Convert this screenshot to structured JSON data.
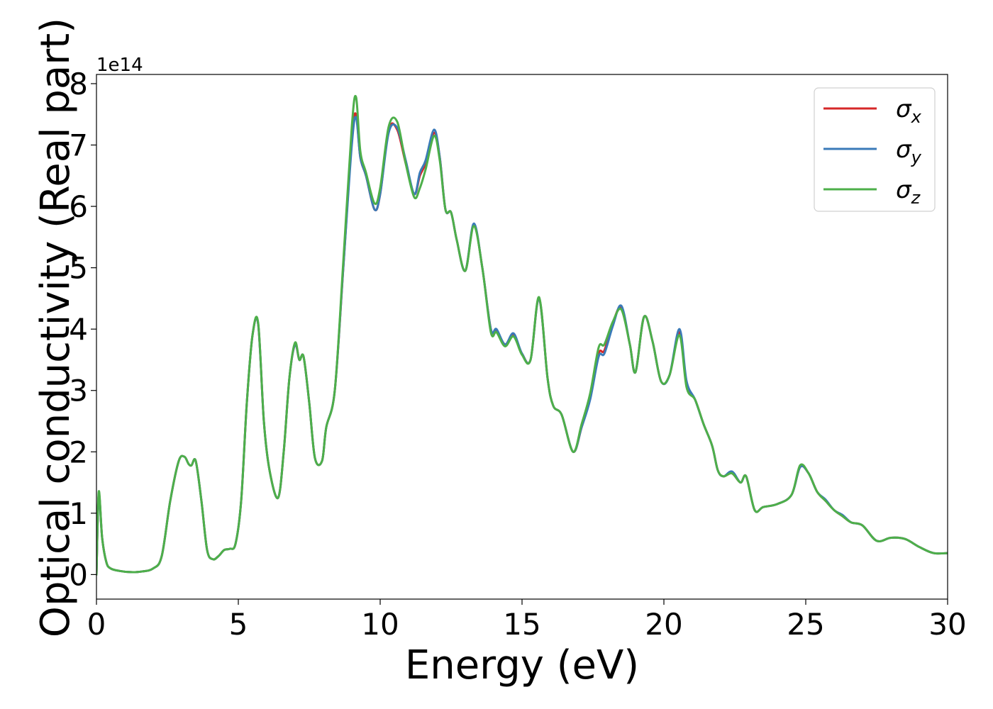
{
  "chart_data": {
    "type": "line",
    "xlabel": "Energy (eV)",
    "ylabel": "Optical conductivity (Real part)",
    "y_offset_label": "1e14",
    "xlim": [
      0,
      30
    ],
    "ylim": [
      -0.4,
      8.15
    ],
    "x_ticks": [
      0,
      5,
      10,
      15,
      20,
      25,
      30
    ],
    "y_ticks": [
      0,
      1,
      2,
      3,
      4,
      5,
      6,
      7,
      8
    ],
    "grid": false,
    "legend_position": "top-right",
    "series": [
      {
        "name": "σx",
        "symbol": "σ",
        "subscript": "x",
        "color": "#d62728",
        "x": [
          0,
          0.08,
          0.2,
          0.35,
          0.5,
          0.8,
          1.2,
          1.6,
          2.0,
          2.3,
          2.6,
          2.9,
          3.1,
          3.25,
          3.35,
          3.5,
          3.7,
          3.9,
          4.1,
          4.3,
          4.5,
          4.7,
          4.9,
          5.1,
          5.3,
          5.5,
          5.7,
          5.9,
          6.1,
          6.4,
          6.6,
          6.8,
          7.0,
          7.15,
          7.3,
          7.5,
          7.7,
          7.95,
          8.1,
          8.4,
          8.7,
          9.0,
          9.15,
          9.3,
          9.5,
          9.8,
          10.0,
          10.3,
          10.6,
          10.9,
          11.2,
          11.4,
          11.6,
          11.9,
          12.1,
          12.3,
          12.5,
          12.7,
          13.0,
          13.3,
          13.6,
          13.9,
          14.1,
          14.4,
          14.7,
          15.0,
          15.3,
          15.6,
          15.9,
          16.1,
          16.4,
          16.8,
          17.1,
          17.4,
          17.7,
          17.9,
          18.2,
          18.5,
          18.8,
          19.0,
          19.3,
          19.6,
          19.9,
          20.2,
          20.55,
          20.8,
          21.1,
          21.4,
          21.7,
          21.9,
          22.1,
          22.4,
          22.7,
          22.9,
          23.2,
          23.5,
          24.0,
          24.5,
          24.8,
          25.1,
          25.4,
          25.7,
          26.0,
          26.3,
          26.6,
          27.0,
          27.5,
          28.0,
          28.5,
          29.0,
          29.5,
          30.0
        ],
        "y": [
          0,
          1.3,
          0.6,
          0.2,
          0.1,
          0.06,
          0.04,
          0.05,
          0.1,
          0.3,
          1.2,
          1.85,
          1.92,
          1.8,
          1.78,
          1.85,
          1.2,
          0.4,
          0.25,
          0.3,
          0.4,
          0.42,
          0.5,
          1.2,
          2.8,
          3.9,
          4.08,
          2.5,
          1.7,
          1.25,
          2.0,
          3.2,
          3.75,
          3.5,
          3.55,
          2.8,
          1.9,
          1.85,
          2.4,
          3.0,
          5.0,
          7.1,
          7.5,
          6.8,
          6.5,
          5.95,
          6.2,
          7.25,
          7.25,
          6.7,
          6.2,
          6.5,
          6.7,
          7.2,
          6.8,
          5.95,
          5.9,
          5.45,
          4.95,
          5.7,
          5.0,
          4.0,
          3.98,
          3.75,
          3.9,
          3.6,
          3.5,
          4.5,
          3.2,
          2.75,
          2.6,
          2.0,
          2.4,
          2.9,
          3.6,
          3.65,
          4.1,
          4.35,
          3.75,
          3.3,
          4.2,
          3.8,
          3.15,
          3.25,
          3.95,
          3.1,
          2.85,
          2.45,
          2.1,
          1.7,
          1.6,
          1.65,
          1.5,
          1.6,
          1.05,
          1.1,
          1.15,
          1.3,
          1.75,
          1.65,
          1.35,
          1.2,
          1.05,
          0.95,
          0.85,
          0.8,
          0.55,
          0.6,
          0.58,
          0.45,
          0.35,
          0.35
        ]
      },
      {
        "name": "σy",
        "symbol": "σ",
        "subscript": "y",
        "color": "#3a7ab8",
        "x": [
          0,
          0.08,
          0.2,
          0.35,
          0.5,
          0.8,
          1.2,
          1.6,
          2.0,
          2.3,
          2.6,
          2.9,
          3.1,
          3.25,
          3.35,
          3.5,
          3.7,
          3.9,
          4.1,
          4.3,
          4.5,
          4.7,
          4.9,
          5.1,
          5.3,
          5.5,
          5.7,
          5.9,
          6.1,
          6.4,
          6.6,
          6.8,
          7.0,
          7.15,
          7.3,
          7.5,
          7.7,
          7.95,
          8.1,
          8.4,
          8.7,
          9.0,
          9.15,
          9.3,
          9.5,
          9.8,
          10.0,
          10.3,
          10.6,
          10.9,
          11.2,
          11.4,
          11.6,
          11.9,
          12.1,
          12.3,
          12.5,
          12.7,
          13.0,
          13.3,
          13.6,
          13.9,
          14.1,
          14.4,
          14.7,
          15.0,
          15.3,
          15.6,
          15.9,
          16.1,
          16.4,
          16.8,
          17.1,
          17.4,
          17.7,
          17.9,
          18.2,
          18.5,
          18.8,
          19.0,
          19.3,
          19.6,
          19.9,
          20.2,
          20.55,
          20.8,
          21.1,
          21.4,
          21.7,
          21.9,
          22.1,
          22.4,
          22.7,
          22.9,
          23.2,
          23.5,
          24.0,
          24.5,
          24.8,
          25.1,
          25.4,
          25.7,
          26.0,
          26.3,
          26.6,
          27.0,
          27.5,
          28.0,
          28.5,
          29.0,
          29.5,
          30.0
        ],
        "y": [
          0,
          1.3,
          0.6,
          0.2,
          0.1,
          0.06,
          0.04,
          0.05,
          0.1,
          0.3,
          1.2,
          1.85,
          1.92,
          1.8,
          1.78,
          1.85,
          1.2,
          0.4,
          0.25,
          0.3,
          0.4,
          0.42,
          0.5,
          1.2,
          2.8,
          3.9,
          4.08,
          2.5,
          1.7,
          1.25,
          2.0,
          3.2,
          3.75,
          3.5,
          3.55,
          2.8,
          1.9,
          1.85,
          2.4,
          3.0,
          5.0,
          7.0,
          7.45,
          6.8,
          6.5,
          5.95,
          6.2,
          7.2,
          7.28,
          6.75,
          6.2,
          6.55,
          6.75,
          7.25,
          6.8,
          5.95,
          5.9,
          5.45,
          4.95,
          5.72,
          5.0,
          4.0,
          4.0,
          3.75,
          3.93,
          3.6,
          3.5,
          4.5,
          3.2,
          2.75,
          2.6,
          2.0,
          2.4,
          2.85,
          3.55,
          3.6,
          4.05,
          4.38,
          3.75,
          3.3,
          4.2,
          3.8,
          3.15,
          3.25,
          4.0,
          3.15,
          2.85,
          2.45,
          2.1,
          1.7,
          1.6,
          1.68,
          1.5,
          1.6,
          1.05,
          1.1,
          1.15,
          1.3,
          1.75,
          1.65,
          1.35,
          1.22,
          1.05,
          0.97,
          0.85,
          0.8,
          0.55,
          0.6,
          0.58,
          0.45,
          0.35,
          0.35
        ]
      },
      {
        "name": "σz",
        "symbol": "σ",
        "subscript": "z",
        "color": "#4daf4a",
        "x": [
          0,
          0.08,
          0.2,
          0.35,
          0.5,
          0.8,
          1.2,
          1.6,
          2.0,
          2.3,
          2.6,
          2.9,
          3.1,
          3.25,
          3.35,
          3.5,
          3.7,
          3.9,
          4.1,
          4.3,
          4.5,
          4.7,
          4.9,
          5.1,
          5.3,
          5.5,
          5.7,
          5.9,
          6.1,
          6.4,
          6.6,
          6.8,
          7.0,
          7.15,
          7.3,
          7.5,
          7.7,
          7.95,
          8.1,
          8.4,
          8.7,
          9.0,
          9.15,
          9.3,
          9.5,
          9.8,
          10.0,
          10.3,
          10.6,
          10.9,
          11.2,
          11.4,
          11.6,
          11.9,
          12.1,
          12.3,
          12.5,
          12.7,
          13.0,
          13.3,
          13.6,
          13.9,
          14.1,
          14.4,
          14.7,
          15.0,
          15.3,
          15.6,
          15.9,
          16.1,
          16.4,
          16.8,
          17.1,
          17.4,
          17.7,
          17.9,
          18.2,
          18.5,
          18.8,
          19.0,
          19.3,
          19.6,
          19.9,
          20.2,
          20.55,
          20.8,
          21.1,
          21.4,
          21.7,
          21.9,
          22.1,
          22.4,
          22.7,
          22.9,
          23.2,
          23.5,
          24.0,
          24.5,
          24.8,
          25.1,
          25.4,
          25.7,
          26.0,
          26.3,
          26.6,
          27.0,
          27.5,
          28.0,
          28.5,
          29.0,
          29.5,
          30.0
        ],
        "y": [
          0,
          1.35,
          0.6,
          0.2,
          0.1,
          0.06,
          0.04,
          0.05,
          0.1,
          0.3,
          1.2,
          1.85,
          1.92,
          1.8,
          1.78,
          1.85,
          1.2,
          0.4,
          0.25,
          0.3,
          0.4,
          0.42,
          0.5,
          1.2,
          2.8,
          3.9,
          4.1,
          2.5,
          1.7,
          1.25,
          2.0,
          3.2,
          3.78,
          3.5,
          3.55,
          2.8,
          1.9,
          1.85,
          2.4,
          3.0,
          5.1,
          7.3,
          7.78,
          6.9,
          6.55,
          6.05,
          6.3,
          7.3,
          7.38,
          6.7,
          6.15,
          6.3,
          6.6,
          7.15,
          6.75,
          5.95,
          5.9,
          5.45,
          4.95,
          5.68,
          5.0,
          3.95,
          3.95,
          3.72,
          3.88,
          3.58,
          3.5,
          4.52,
          3.2,
          2.75,
          2.6,
          2.0,
          2.45,
          2.95,
          3.7,
          3.75,
          4.12,
          4.32,
          3.75,
          3.3,
          4.2,
          3.8,
          3.15,
          3.25,
          3.9,
          3.05,
          2.85,
          2.45,
          2.1,
          1.7,
          1.6,
          1.65,
          1.5,
          1.6,
          1.05,
          1.1,
          1.15,
          1.3,
          1.78,
          1.65,
          1.35,
          1.2,
          1.05,
          0.95,
          0.85,
          0.8,
          0.55,
          0.6,
          0.58,
          0.45,
          0.35,
          0.35
        ]
      }
    ]
  }
}
